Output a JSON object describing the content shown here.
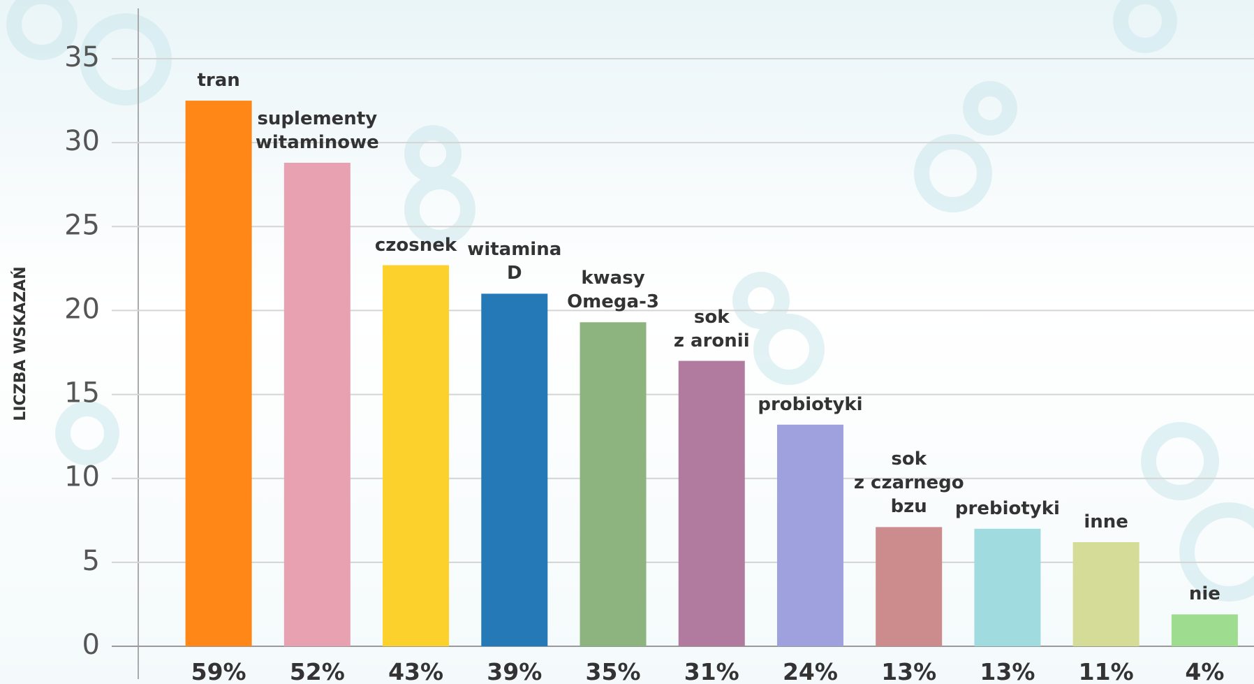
{
  "chart_data": {
    "type": "bar",
    "y_label": "LICZBA WSKAZAŃ",
    "categories": [
      "tran",
      "suplementy\nwitaminowe",
      "czosnek",
      "witamina\nD",
      "kwasy\nOmega-3",
      "sok\nz aronii",
      "probiotyki",
      "sok\nz czarnego\nbzu",
      "prebiotyki",
      "inne",
      "nie"
    ],
    "values": [
      32.5,
      28.8,
      22.7,
      21,
      19.3,
      17,
      13.2,
      7.1,
      7,
      6.2,
      1.9
    ],
    "colors": [
      "#ff8717",
      "#e8a1b0",
      "#fdd12b",
      "#2479b6",
      "#8db47e",
      "#b17ba0",
      "#9ea1de",
      "#cc8b8d",
      "#a0dbdf",
      "#d5dc97",
      "#9edd90"
    ],
    "share_labels": [
      "59%",
      "52%",
      "43%",
      "39%",
      "35%",
      "31%",
      "24%",
      "13%",
      "13%",
      "11%",
      "4%"
    ],
    "ylim": [
      0,
      35
    ],
    "yticks": [
      0,
      5,
      10,
      15,
      20,
      25,
      30,
      35
    ],
    "grid": true
  }
}
